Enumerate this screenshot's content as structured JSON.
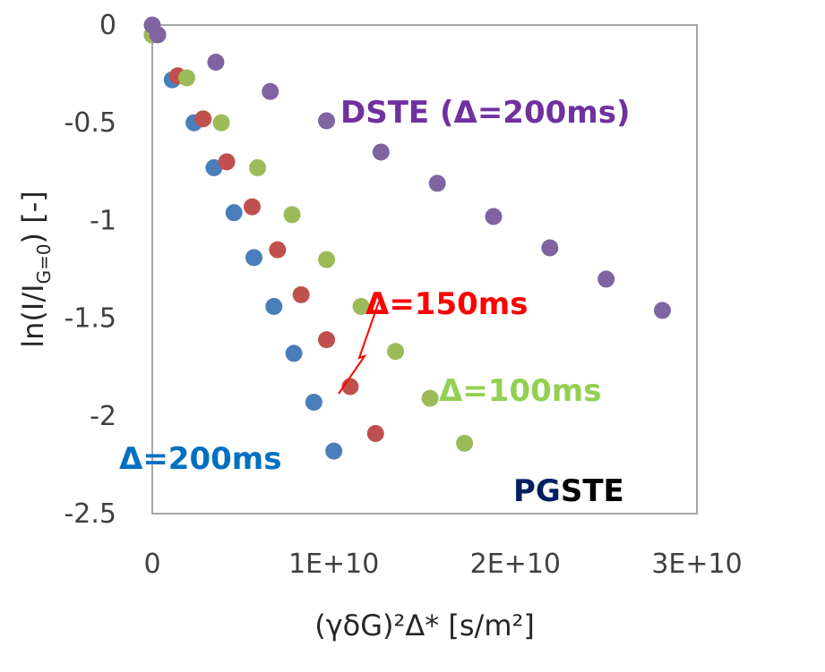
{
  "chart_data": {
    "type": "scatter",
    "title": "",
    "xlabel": "(γδG)²Δ*  [s/m²]",
    "ylabel": "ln(I/I_G=0) [-]",
    "xlim": [
      0,
      30000000000
    ],
    "ylim": [
      -2.5,
      0
    ],
    "x_ticks": [
      0,
      10000000000,
      20000000000,
      30000000000
    ],
    "x_tick_labels": [
      "0",
      "1E+10",
      "2E+10",
      "3E+10"
    ],
    "y_ticks": [
      0,
      -0.5,
      -1,
      -1.5,
      -2,
      -2.5
    ],
    "y_tick_labels": [
      "0",
      "-0.5",
      "-1",
      "-1.5",
      "-2",
      "-2.5"
    ],
    "grid": false,
    "series": [
      {
        "name": "Δ=200ms",
        "color": "#4a7ebb",
        "x": [
          0,
          1100000000,
          2300000000,
          3400000000,
          4500000000,
          5600000000,
          6700000000,
          7800000000,
          8900000000,
          10000000000
        ],
        "y": [
          -0.05,
          -0.28,
          -0.5,
          -0.73,
          -0.96,
          -1.19,
          -1.44,
          -1.68,
          -1.93,
          -2.18
        ]
      },
      {
        "name": "Δ=150ms",
        "color": "#c0504d",
        "x": [
          0,
          1400000000,
          2800000000,
          4100000000,
          5500000000,
          6900000000,
          8200000000,
          9600000000,
          10900000000,
          12300000000
        ],
        "y": [
          -0.05,
          -0.26,
          -0.48,
          -0.7,
          -0.93,
          -1.15,
          -1.38,
          -1.61,
          -1.85,
          -2.09
        ]
      },
      {
        "name": "Δ=100ms",
        "color": "#9bbb59",
        "x": [
          0,
          1900000000,
          3800000000,
          5800000000,
          7700000000,
          9600000000,
          11500000000,
          13400000000,
          15300000000,
          17200000000
        ],
        "y": [
          -0.05,
          -0.27,
          -0.5,
          -0.73,
          -0.97,
          -1.2,
          -1.44,
          -1.67,
          -1.91,
          -2.14
        ]
      },
      {
        "name": "DSTE (Δ=200ms)",
        "color": "#8064a2",
        "x": [
          0,
          300000000,
          3500000000,
          6500000000,
          9600000000,
          12600000000,
          15700000000,
          18800000000,
          21900000000,
          25000000000,
          28100000000
        ],
        "y": [
          0,
          -0.05,
          -0.19,
          -0.34,
          -0.49,
          -0.65,
          -0.81,
          -0.98,
          -1.14,
          -1.3,
          -1.46
        ]
      }
    ],
    "annotations": [
      {
        "text": "DSTE (Δ=200ms)",
        "color": "#7030a0"
      },
      {
        "text": "Δ=150ms",
        "color": "#ff0000"
      },
      {
        "text": "Δ=100ms",
        "color": "#92d050"
      },
      {
        "text": "Δ=200ms",
        "color": "#0070c0"
      },
      {
        "text_pg": "PG",
        "text_ste": "STE",
        "color_pg": "#002060",
        "color_ste": "#000000"
      }
    ]
  }
}
